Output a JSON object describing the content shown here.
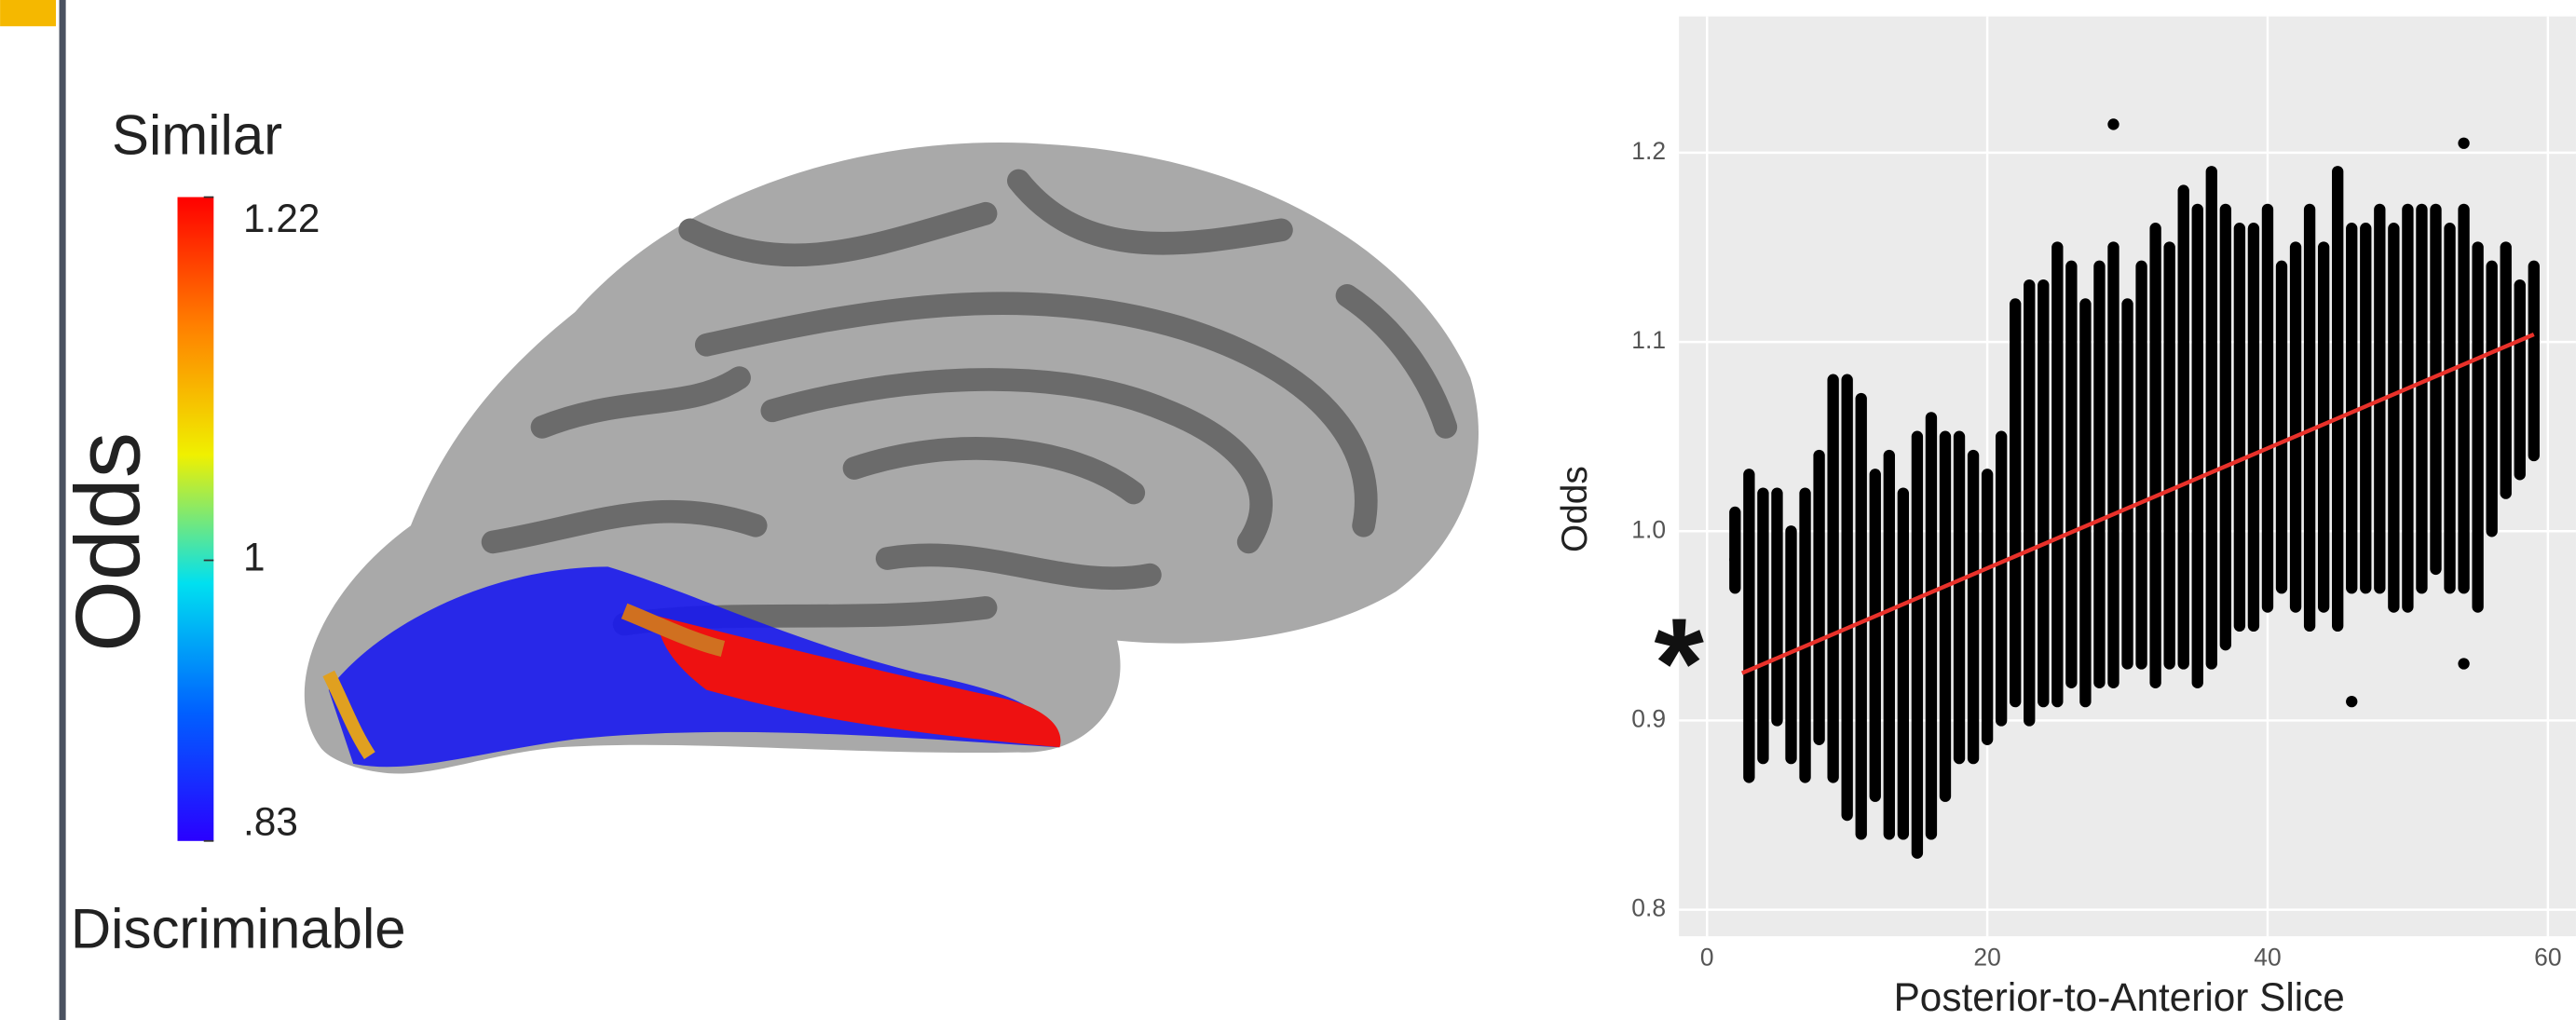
{
  "chart_data": [
    {
      "type": "colorbar",
      "title": "Similar",
      "subtitle": "Discriminable",
      "label": "Odds",
      "colors": [
        "#2a00ff",
        "#0060ff",
        "#00e0f0",
        "#f0f000",
        "#ff8000",
        "#ff0000"
      ],
      "ylim": [
        0.83,
        1.22
      ],
      "yticks": [
        {
          "value": 0.83,
          "label": ".83"
        },
        1,
        1.22
      ]
    },
    {
      "type": "scatter",
      "ylabel": "Odds",
      "xlabel": "Posterior-to-Anterior Slice",
      "annotation": "*",
      "color": "#000000",
      "grid": true,
      "xlim": [
        -2,
        62
      ],
      "ylim": [
        0.786,
        1.272
      ],
      "xticks": [
        0,
        20,
        40,
        60
      ],
      "yticks": [
        0.8,
        0.9,
        {
          "value": 1,
          "label": "1.0"
        },
        1.1,
        1.2
      ],
      "x": [
        2,
        3,
        4,
        5,
        6,
        7,
        8,
        9,
        10,
        11,
        12,
        13,
        14,
        15,
        16,
        17,
        18,
        19,
        20,
        21,
        22,
        23,
        24,
        25,
        26,
        27,
        28,
        29,
        30,
        31,
        32,
        33,
        34,
        35,
        36,
        37,
        38,
        39,
        40,
        41,
        42,
        43,
        44,
        45,
        46,
        47,
        48,
        49,
        50,
        51,
        52,
        53,
        54,
        55,
        56,
        57,
        58,
        59
      ],
      "low": [
        0.97,
        0.87,
        0.88,
        0.9,
        0.88,
        0.87,
        0.89,
        0.87,
        0.85,
        0.84,
        0.86,
        0.84,
        0.84,
        0.83,
        0.84,
        0.86,
        0.88,
        0.88,
        0.89,
        0.9,
        0.91,
        0.9,
        0.91,
        0.91,
        0.92,
        0.91,
        0.92,
        0.92,
        0.93,
        0.93,
        0.92,
        0.93,
        0.93,
        0.92,
        0.93,
        0.94,
        0.95,
        0.95,
        0.96,
        0.97,
        0.96,
        0.95,
        0.96,
        0.95,
        0.97,
        0.97,
        0.97,
        0.96,
        0.96,
        0.97,
        0.98,
        0.97,
        0.97,
        0.96,
        1.0,
        1.02,
        1.03,
        1.04
      ],
      "high": [
        1.01,
        1.03,
        1.02,
        1.02,
        1.0,
        1.02,
        1.04,
        1.08,
        1.08,
        1.07,
        1.03,
        1.04,
        1.02,
        1.05,
        1.06,
        1.05,
        1.05,
        1.04,
        1.03,
        1.05,
        1.12,
        1.13,
        1.13,
        1.15,
        1.14,
        1.12,
        1.14,
        1.15,
        1.12,
        1.14,
        1.16,
        1.15,
        1.18,
        1.17,
        1.19,
        1.17,
        1.16,
        1.16,
        1.17,
        1.14,
        1.15,
        1.17,
        1.15,
        1.19,
        1.16,
        1.16,
        1.17,
        1.16,
        1.17,
        1.17,
        1.17,
        1.16,
        1.17,
        1.15,
        1.14,
        1.15,
        1.13,
        1.14
      ],
      "outliers": {
        "x": [
          29,
          54,
          54,
          46,
          2
        ],
        "y": [
          1.215,
          1.205,
          0.93,
          0.91,
          0.985
        ]
      },
      "fit": {
        "color": "#e8312a",
        "x": [
          2.5,
          59
        ],
        "y": [
          0.925,
          1.104
        ]
      }
    }
  ]
}
